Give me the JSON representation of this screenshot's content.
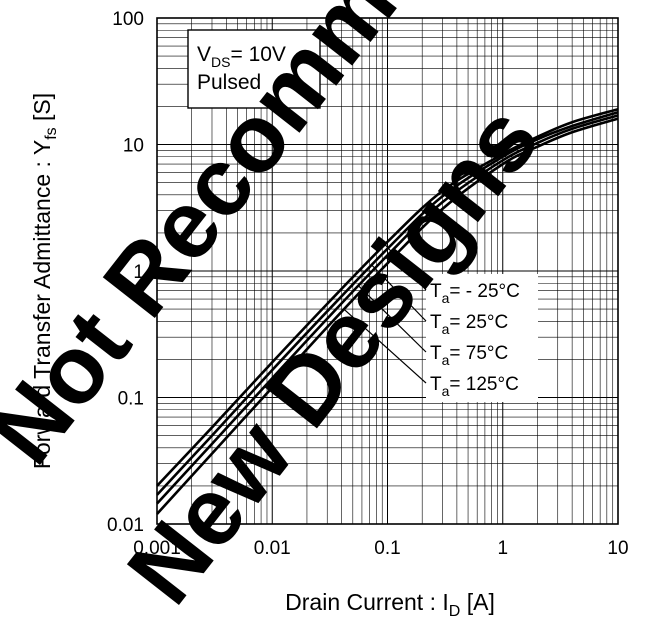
{
  "chart_data": {
    "type": "line",
    "title": "",
    "xlabel": {
      "main": "Drain Current : I",
      "sub": "D",
      "unit": " [A]"
    },
    "ylabel": {
      "main": "Forward Transfer Admittance : Y",
      "sub": "fs",
      "unit": " [S]"
    },
    "x_scale": "log",
    "y_scale": "log",
    "xlim": [
      0.001,
      10
    ],
    "ylim": [
      0.01,
      100
    ],
    "x_ticks": [
      "0.001",
      "0.01",
      "0.1",
      "1",
      "10"
    ],
    "y_ticks": [
      "0.01",
      "0.1",
      "1",
      "10",
      "100"
    ],
    "grid": true,
    "conditions": [
      {
        "main": "V",
        "sub": "DS",
        "rest": "= 10V"
      },
      {
        "main": "Pulsed",
        "sub": "",
        "rest": ""
      }
    ],
    "series": [
      {
        "name": "Ta= - 25°C",
        "label": {
          "pre": "T",
          "sub": "a",
          "post": "= - 25°C"
        },
        "x": [
          0.001,
          0.003,
          0.01,
          0.03,
          0.1,
          0.3,
          1,
          2,
          4,
          10
        ],
        "y": [
          0.02,
          0.058,
          0.19,
          0.55,
          1.7,
          4.3,
          8.4,
          11.5,
          15,
          19
        ]
      },
      {
        "name": "Ta= 25°C",
        "label": {
          "pre": "T",
          "sub": "a",
          "post": "= 25°C"
        },
        "x": [
          0.001,
          0.003,
          0.01,
          0.03,
          0.1,
          0.3,
          1,
          2,
          4,
          10
        ],
        "y": [
          0.017,
          0.05,
          0.165,
          0.48,
          1.5,
          3.9,
          8.0,
          11,
          14,
          18
        ]
      },
      {
        "name": "Ta= 75°C",
        "label": {
          "pre": "T",
          "sub": "a",
          "post": "= 75°C"
        },
        "x": [
          0.001,
          0.003,
          0.01,
          0.03,
          0.1,
          0.3,
          1,
          2,
          4,
          10
        ],
        "y": [
          0.0145,
          0.043,
          0.142,
          0.42,
          1.33,
          3.5,
          7.5,
          10.3,
          13.3,
          17
        ]
      },
      {
        "name": "Ta= 125°C",
        "label": {
          "pre": "T",
          "sub": "a",
          "post": "= 125°C"
        },
        "x": [
          0.001,
          0.003,
          0.01,
          0.03,
          0.1,
          0.3,
          1,
          2,
          4,
          10
        ],
        "y": [
          0.012,
          0.036,
          0.12,
          0.36,
          1.15,
          3.1,
          7.0,
          9.6,
          12.5,
          16
        ]
      }
    ]
  },
  "watermark": [
    "Not Recommended for",
    "New Designs"
  ]
}
